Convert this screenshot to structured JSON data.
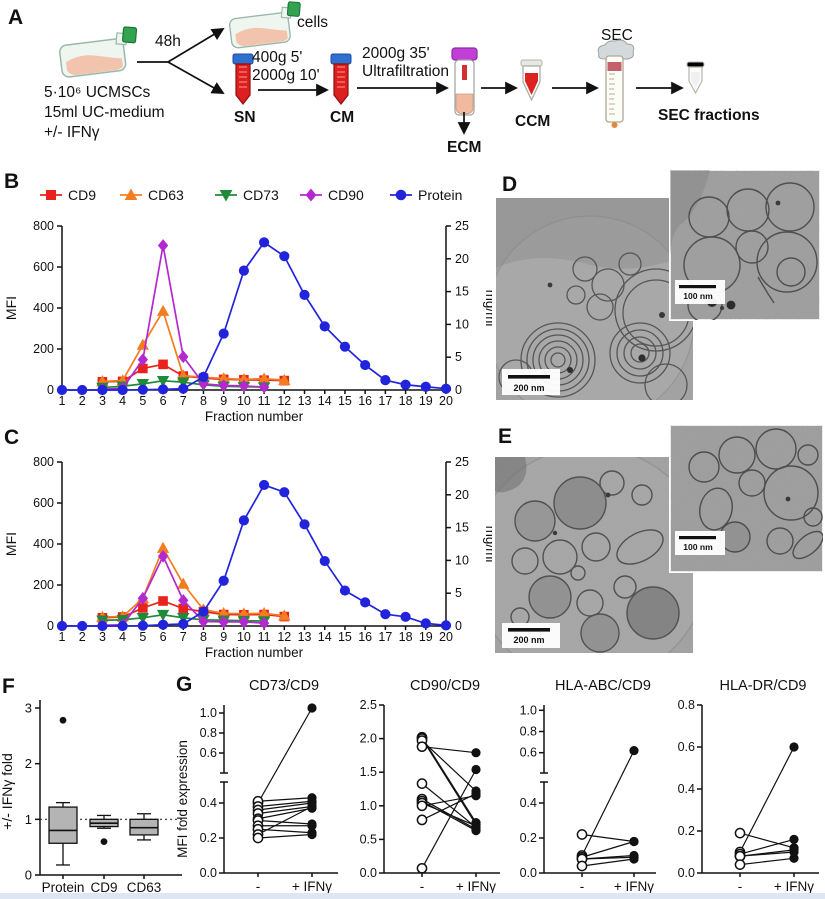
{
  "panel_labels": {
    "a": "A",
    "b": "B",
    "c": "C",
    "d": "D",
    "e": "E",
    "f": "F",
    "g": "G"
  },
  "workflow": {
    "flask_input_lines": [
      "5·10⁶ UCMSCs",
      "15ml UC-medium",
      "+/- IFNγ"
    ],
    "incubation_label": "48h",
    "cells_label": "cells",
    "sn_label": "SN",
    "centrifugation1_lines": [
      "400g 5'",
      "2000g 10'"
    ],
    "cm_label": "CM",
    "centrifugation2_lines": [
      "2000g 35'",
      "Ultrafiltration"
    ],
    "ecm_label": "ECM",
    "ccm_label": "CCM",
    "sec_label": "SEC",
    "sec_fractions_label": "SEC fractions"
  },
  "em": {
    "d": {
      "main_scalebar": "200 nm",
      "inset_scalebar": "100 nm"
    },
    "e": {
      "main_scalebar": "200 nm",
      "inset_scalebar": "100 nm"
    }
  },
  "colors": {
    "cd9": "#e8231d",
    "cd63": "#f47d20",
    "cd73": "#1f8a3a",
    "cd90": "#b429cf",
    "protein": "#2224dc",
    "box_fill": "#b4b4b4",
    "axis": "#111111"
  },
  "chart_data": [
    {
      "id": "B",
      "type": "line",
      "panel": "B",
      "show_legend": true,
      "xlabel": "Fraction number",
      "xticks": [
        1,
        2,
        3,
        4,
        5,
        6,
        7,
        8,
        9,
        10,
        11,
        12,
        13,
        14,
        15,
        16,
        17,
        18,
        19,
        20
      ],
      "ylabel_left": "MFI",
      "ylim_left": [
        0,
        800
      ],
      "yticks_left": [
        0,
        200,
        400,
        600,
        800
      ],
      "ylabel_right": "mg/ml",
      "ylim_right": [
        0,
        25
      ],
      "yticks_right": [
        0,
        5,
        10,
        15,
        20,
        25
      ],
      "series": [
        {
          "name": "CD9",
          "color": "#e8231d",
          "marker": "square",
          "axis": "left",
          "x": [
            3,
            4,
            5,
            6,
            7,
            8,
            9,
            10,
            11,
            12
          ],
          "values": [
            40,
            42,
            105,
            125,
            68,
            58,
            52,
            50,
            48,
            46
          ]
        },
        {
          "name": "CD63",
          "color": "#f47d20",
          "marker": "triangle-up",
          "axis": "left",
          "x": [
            3,
            4,
            5,
            6,
            7,
            8,
            9,
            10,
            11,
            12
          ],
          "values": [
            42,
            46,
            220,
            385,
            70,
            62,
            56,
            52,
            55,
            48
          ]
        },
        {
          "name": "CD73",
          "color": "#1f8a3a",
          "marker": "triangle-down",
          "axis": "left",
          "x": [
            3,
            4,
            5,
            6,
            7,
            8,
            9,
            10,
            11
          ],
          "values": [
            12,
            18,
            30,
            45,
            38,
            25,
            18,
            16,
            14
          ]
        },
        {
          "name": "CD90",
          "color": "#b429cf",
          "marker": "diamond",
          "axis": "left",
          "x": [
            3,
            4,
            5,
            6,
            7,
            8,
            9,
            10,
            11
          ],
          "values": [
            4,
            8,
            148,
            705,
            162,
            30,
            22,
            20,
            14
          ]
        },
        {
          "name": "Protein",
          "color": "#2224dc",
          "marker": "circle",
          "axis": "right",
          "x": [
            1,
            2,
            3,
            4,
            5,
            6,
            7,
            8,
            9,
            10,
            11,
            12,
            13,
            14,
            15,
            16,
            17,
            18,
            19,
            20
          ],
          "values": [
            0,
            0,
            0,
            0,
            0.05,
            0.1,
            0.2,
            2.0,
            8.6,
            18.2,
            22.5,
            20.4,
            14.5,
            9.7,
            6.6,
            3.8,
            1.5,
            0.8,
            0.5,
            0.2
          ]
        }
      ]
    },
    {
      "id": "C",
      "type": "line",
      "panel": "C",
      "show_legend": false,
      "xlabel": "Fraction number",
      "xticks": [
        1,
        2,
        3,
        4,
        5,
        6,
        7,
        8,
        9,
        10,
        11,
        12,
        13,
        14,
        15,
        16,
        17,
        18,
        19,
        20
      ],
      "ylabel_left": "MFI",
      "ylim_left": [
        0,
        800
      ],
      "yticks_left": [
        0,
        200,
        400,
        600,
        800
      ],
      "ylabel_right": "mg/ml",
      "ylim_right": [
        0,
        25
      ],
      "yticks_right": [
        0,
        5,
        10,
        15,
        20,
        25
      ],
      "series": [
        {
          "name": "CD9",
          "color": "#e8231d",
          "marker": "square",
          "axis": "left",
          "x": [
            3,
            4,
            5,
            6,
            7,
            8,
            9,
            10,
            11,
            12
          ],
          "values": [
            40,
            44,
            88,
            122,
            85,
            70,
            56,
            55,
            56,
            46
          ]
        },
        {
          "name": "CD63",
          "color": "#f47d20",
          "marker": "triangle-up",
          "axis": "left",
          "x": [
            3,
            4,
            5,
            6,
            7,
            8,
            9,
            10,
            11,
            12
          ],
          "values": [
            44,
            46,
            135,
            380,
            205,
            80,
            62,
            60,
            62,
            50
          ]
        },
        {
          "name": "CD73",
          "color": "#1f8a3a",
          "marker": "triangle-down",
          "axis": "left",
          "x": [
            3,
            4,
            5,
            6,
            7,
            8,
            9,
            10,
            11
          ],
          "values": [
            28,
            30,
            40,
            55,
            40,
            30,
            28,
            26,
            24
          ]
        },
        {
          "name": "CD90",
          "color": "#b429cf",
          "marker": "diamond",
          "axis": "left",
          "x": [
            3,
            4,
            5,
            6,
            7,
            8,
            9,
            10,
            11
          ],
          "values": [
            4,
            6,
            135,
            340,
            125,
            22,
            20,
            20,
            14
          ]
        },
        {
          "name": "Protein",
          "color": "#2224dc",
          "marker": "circle",
          "axis": "right",
          "x": [
            1,
            2,
            3,
            4,
            5,
            6,
            7,
            8,
            9,
            10,
            11,
            12,
            13,
            14,
            15,
            16,
            17,
            18,
            19,
            20
          ],
          "values": [
            0,
            0,
            0,
            0,
            0.05,
            0.2,
            0.3,
            2.2,
            6.9,
            16.1,
            21.5,
            20.4,
            15.5,
            9.9,
            5.4,
            3.6,
            1.8,
            1.4,
            0.4,
            0.1
          ]
        }
      ]
    },
    {
      "id": "F",
      "type": "box",
      "panel": "F",
      "ylabel": "+/- IFNγ fold",
      "ylim": [
        0,
        3
      ],
      "yticks": [
        0,
        1,
        2,
        3
      ],
      "reference_line": 1.0,
      "categories": [
        "Protein",
        "CD9",
        "CD63"
      ],
      "boxes": [
        {
          "category": "Protein",
          "whisker_low": 0.18,
          "q1": 0.57,
          "median": 0.8,
          "q3": 1.22,
          "whisker_high": 1.3,
          "outliers": [
            2.78
          ]
        },
        {
          "category": "CD9",
          "whisker_low": 0.84,
          "q1": 0.87,
          "median": 0.93,
          "q3": 1.0,
          "whisker_high": 1.07,
          "outliers": [
            0.6
          ]
        },
        {
          "category": "CD63",
          "whisker_low": 0.63,
          "q1": 0.72,
          "median": 0.85,
          "q3": 1.0,
          "whisker_high": 1.1,
          "outliers": []
        }
      ]
    },
    {
      "id": "G1",
      "type": "paired-scatter",
      "panel": "G",
      "title": "CD73/CD9",
      "ylabel": "MFI fold expression",
      "x_categories": [
        "-",
        "+ IFNγ"
      ],
      "axis_break": {
        "lower_domain": [
          0,
          0.52
        ],
        "lower_ticks": [
          0.0,
          0.2,
          0.4
        ],
        "upper_domain": [
          0.55,
          1.08
        ],
        "upper_ticks": [
          0.6,
          0.8,
          1.0
        ]
      },
      "pairs": [
        [
          0.4,
          1.05
        ],
        [
          0.41,
          0.43
        ],
        [
          0.38,
          0.41
        ],
        [
          0.36,
          0.4
        ],
        [
          0.34,
          0.38
        ],
        [
          0.31,
          0.37
        ],
        [
          0.3,
          0.28
        ],
        [
          0.27,
          0.27
        ],
        [
          0.25,
          0.23
        ],
        [
          0.22,
          0.38
        ],
        [
          0.2,
          0.22
        ]
      ]
    },
    {
      "id": "G2",
      "type": "paired-scatter",
      "panel": "G",
      "title": "CD90/CD9",
      "x_categories": [
        "-",
        "+ IFNγ"
      ],
      "ylim": [
        0,
        2.5
      ],
      "yticks": [
        0.0,
        0.5,
        1.0,
        1.5,
        2.0,
        2.5
      ],
      "pairs": [
        [
          2.02,
          0.75
        ],
        [
          2.0,
          0.72
        ],
        [
          1.97,
          1.22
        ],
        [
          1.88,
          1.79
        ],
        [
          1.33,
          0.68
        ],
        [
          1.1,
          0.65
        ],
        [
          1.07,
          0.63
        ],
        [
          1.04,
          0.7
        ],
        [
          1.0,
          1.15
        ],
        [
          0.79,
          1.18
        ],
        [
          0.07,
          1.54
        ]
      ]
    },
    {
      "id": "G3",
      "type": "paired-scatter",
      "panel": "G",
      "title": "HLA-ABC/CD9",
      "x_categories": [
        "-",
        "+ IFNγ"
      ],
      "axis_break": {
        "lower_domain": [
          0,
          0.52
        ],
        "lower_ticks": [
          0.0,
          0.2,
          0.4
        ],
        "upper_domain": [
          0.55,
          1.05
        ],
        "upper_ticks": [
          0.6,
          0.8,
          1.0
        ]
      },
      "pairs": [
        [
          0.22,
          0.18
        ],
        [
          0.1,
          0.62
        ],
        [
          0.09,
          0.18
        ],
        [
          0.08,
          0.1
        ],
        [
          0.08,
          0.09
        ],
        [
          0.04,
          0.08
        ]
      ]
    },
    {
      "id": "G4",
      "type": "paired-scatter",
      "panel": "G",
      "title": "HLA-DR/CD9",
      "x_categories": [
        "-",
        "+ IFNγ"
      ],
      "ylim": [
        0,
        0.8
      ],
      "yticks": [
        0.0,
        0.2,
        0.4,
        0.6,
        0.8
      ],
      "pairs": [
        [
          0.19,
          0.12
        ],
        [
          0.1,
          0.6
        ],
        [
          0.09,
          0.16
        ],
        [
          0.08,
          0.11
        ],
        [
          0.08,
          0.1
        ],
        [
          0.04,
          0.07
        ]
      ]
    }
  ]
}
